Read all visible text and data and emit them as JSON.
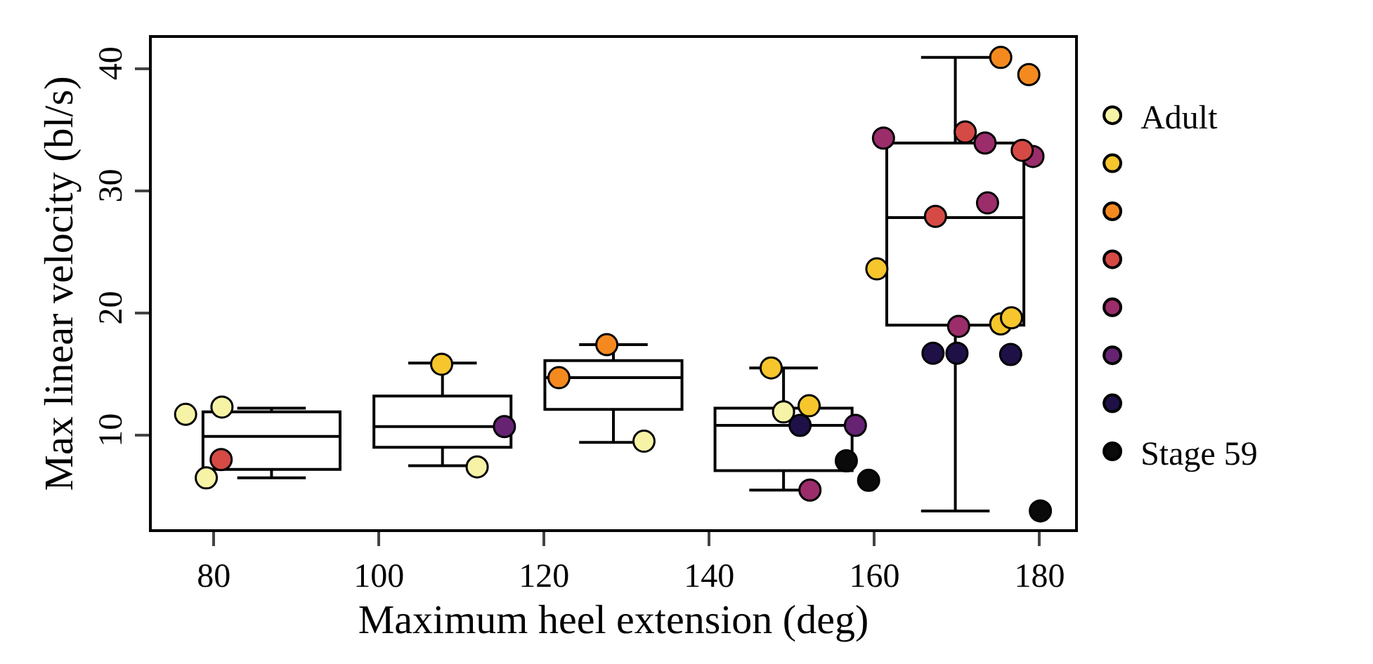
{
  "chart_data": {
    "type": "box",
    "xlabel": "Maximum heel extension (deg)",
    "ylabel": "Max linear velocity (bl/s)",
    "x": [
      87,
      107.7,
      128.4,
      149,
      169.8
    ],
    "boxes": [
      {
        "low": 6.5,
        "q1": 7.2,
        "median": 9.9,
        "q3": 11.9,
        "high": 12.2
      },
      {
        "low": 7.5,
        "q1": 9.0,
        "median": 10.7,
        "q3": 13.2,
        "high": 15.9
      },
      {
        "low": 9.4,
        "q1": 12.1,
        "median": 14.7,
        "q3": 16.1,
        "high": 17.4
      },
      {
        "low": 5.5,
        "q1": 7.1,
        "median": 10.8,
        "q3": 12.2,
        "high": 15.5
      },
      {
        "low": 3.8,
        "q1": 19.0,
        "median": 27.8,
        "q3": 33.9,
        "high": 40.9
      }
    ],
    "series": [
      {
        "type": "scatter",
        "name": "Stage 59",
        "color": "#0a0a0a",
        "x": [
          156.6,
          159.3,
          180.1
        ],
        "values": [
          7.9,
          6.3,
          3.8
        ]
      },
      {
        "type": "scatter",
        "color": "#1f1147",
        "x": [
          151.0,
          167.1,
          170.0,
          176.5
        ],
        "values": [
          10.8,
          16.7,
          16.7,
          16.6
        ]
      },
      {
        "type": "scatter",
        "color": "#652372",
        "x": [
          115.2,
          157.7
        ],
        "values": [
          10.7,
          10.8
        ]
      },
      {
        "type": "scatter",
        "color": "#9b2d6b",
        "x": [
          152.2,
          161.1,
          173.4,
          179.2,
          173.7,
          170.2
        ],
        "values": [
          5.5,
          34.3,
          33.9,
          32.8,
          29.0,
          18.9
        ]
      },
      {
        "type": "scatter",
        "color": "#d54a45",
        "x": [
          80.9,
          171.0,
          177.9,
          167.4
        ],
        "values": [
          8.0,
          34.8,
          33.3,
          27.9
        ]
      },
      {
        "type": "scatter",
        "color": "#f48a1f",
        "x": [
          127.6,
          121.8,
          175.3,
          178.7
        ],
        "values": [
          17.4,
          14.7,
          40.9,
          39.5
        ]
      },
      {
        "type": "scatter",
        "color": "#f6c62c",
        "x": [
          107.6,
          147.5,
          152.1,
          160.3,
          175.3,
          176.6
        ],
        "values": [
          15.8,
          15.5,
          12.4,
          23.6,
          19.1,
          19.6
        ]
      },
      {
        "type": "scatter",
        "name": "Adult",
        "color": "#f6f3a6",
        "x": [
          76.6,
          81.0,
          79.1,
          111.9,
          132.1,
          149.0
        ],
        "values": [
          11.7,
          12.3,
          6.5,
          7.4,
          9.5,
          11.9
        ]
      }
    ],
    "marker": "circle",
    "xlim": [
      72.5,
      184.3
    ],
    "ylim": [
      2.3,
      42.5
    ],
    "xticks": [
      80,
      100,
      120,
      140,
      160,
      180
    ],
    "yticks": [
      10,
      20,
      30,
      40
    ],
    "legend": "right"
  }
}
